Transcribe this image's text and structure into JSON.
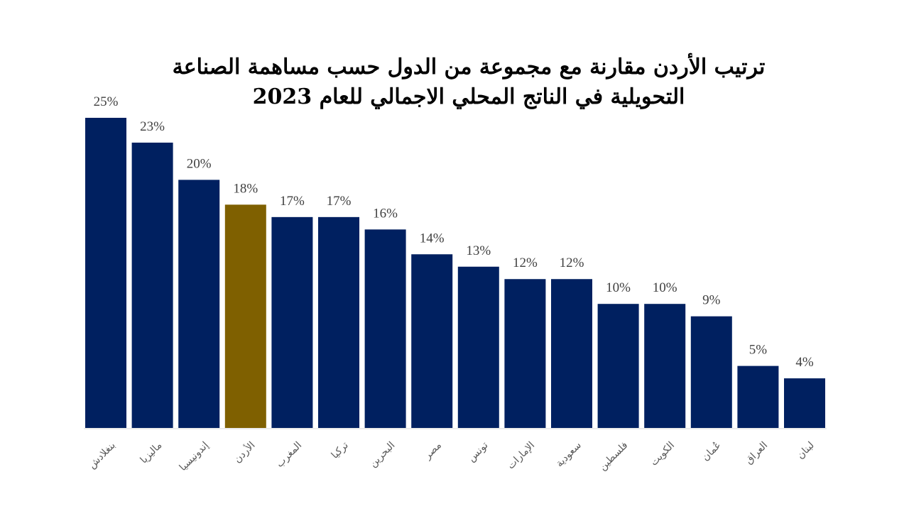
{
  "chart_data": {
    "type": "bar",
    "title_lines": [
      "ترتيب الأردن مقارنة مع مجموعة من الدول حسب مساهمة الصناعة",
      "التحويلية في الناتج المحلي الاجمالي للعام 2023"
    ],
    "categories": [
      "بنغلادش",
      "ماليزيا",
      "إندونيسيا",
      "الأردن",
      "المغرب",
      "تركيا",
      "البحرين",
      "مصر",
      "تونس",
      "الإمارات",
      "سعودية",
      "فلسطين",
      "الكويت",
      "عُمان",
      "العراق",
      "لبنان"
    ],
    "values": [
      25,
      23,
      20,
      18,
      17,
      17,
      16,
      14,
      13,
      12,
      12,
      10,
      10,
      9,
      5,
      4
    ],
    "data_labels": [
      "25%",
      "23%",
      "20%",
      "18%",
      "17%",
      "17%",
      "16%",
      "14%",
      "13%",
      "12%",
      "12%",
      "10%",
      "10%",
      "9%",
      "5%",
      "4%"
    ],
    "unit": "%",
    "highlight_category": "الأردن",
    "colors": {
      "default": "#002060",
      "highlight": "#7F6000"
    },
    "xlabel": "",
    "ylabel": "",
    "ylim": [
      0,
      25
    ],
    "grid": false,
    "legend": "none"
  }
}
